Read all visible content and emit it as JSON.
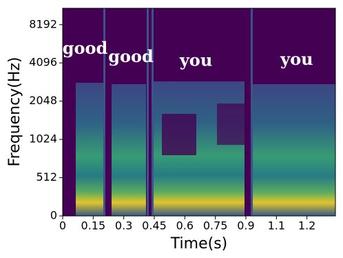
{
  "chart_data": {
    "type": "spectrogram",
    "xlabel": "Time(s)",
    "ylabel": "Frequency(Hz)",
    "xlim": [
      0,
      1.34
    ],
    "xticks": [
      0,
      0.15,
      0.3,
      0.45,
      0.6,
      0.75,
      0.9,
      {
        "value": 1.05,
        "label": "1.1"
      },
      1.2
    ],
    "ylim": [
      0,
      11025
    ],
    "yscale": "symlog",
    "linthresh": 512,
    "yticks": [
      0,
      512,
      1024,
      2048,
      4096,
      8192
    ],
    "annotations": [
      {
        "text": "good",
        "x": 0.11,
        "y": 5250
      },
      {
        "text": "good",
        "x": 0.335,
        "y": 4500
      },
      {
        "text": "you",
        "x": 0.655,
        "y": 4200
      },
      {
        "text": "you",
        "x": 1.15,
        "y": 4300
      }
    ]
  }
}
